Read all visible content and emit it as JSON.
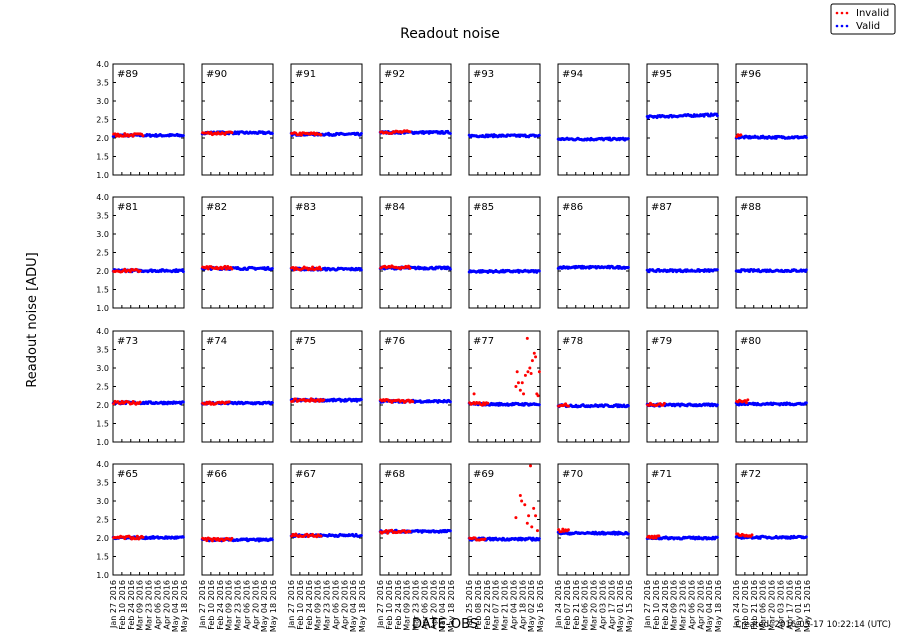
{
  "chart_data": {
    "type": "scatter",
    "title": "Readout noise",
    "xlabel": "DATE-OBS",
    "ylabel": "Readout noise [ADU]",
    "footer": "Created: 2016-05-17 10:22:14 (UTC)",
    "ylim": [
      1.0,
      4.0
    ],
    "yticks": [
      "1.0",
      "1.5",
      "2.0",
      "2.5",
      "3.0",
      "3.5",
      "4.0"
    ],
    "grid": false,
    "legend": {
      "position": "top-right",
      "entries": [
        {
          "name": "Invalid",
          "color": "#ff0000"
        },
        {
          "name": "Valid",
          "color": "#0000ff"
        }
      ]
    },
    "column_xticks": [
      [
        "2016-01-27",
        "2016-02-10",
        "2016-02-24",
        "2016-03-09",
        "2016-03-23",
        "2016-04-06",
        "2016-04-20",
        "2016-05-04",
        "2016-05-18"
      ],
      [
        "2016-01-27",
        "2016-02-10",
        "2016-02-24",
        "2016-03-09",
        "2016-03-23",
        "2016-04-06",
        "2016-04-20",
        "2016-05-04",
        "2016-05-18"
      ],
      [
        "2016-01-27",
        "2016-02-10",
        "2016-02-24",
        "2016-03-09",
        "2016-03-23",
        "2016-04-06",
        "2016-04-20",
        "2016-05-04",
        "2016-05-18"
      ],
      [
        "2016-01-27",
        "2016-02-10",
        "2016-02-24",
        "2016-03-09",
        "2016-03-23",
        "2016-04-06",
        "2016-04-20",
        "2016-05-04",
        "2016-05-18"
      ],
      [
        "2016-01-25",
        "2016-02-08",
        "2016-02-22",
        "2016-03-07",
        "2016-03-21",
        "2016-04-04",
        "2016-04-18",
        "2016-05-02",
        "2016-05-16"
      ],
      [
        "2016-01-24",
        "2016-02-07",
        "2016-02-21",
        "2016-03-06",
        "2016-03-20",
        "2016-04-03",
        "2016-04-17",
        "2016-05-01",
        "2016-05-15"
      ],
      [
        "2016-01-27",
        "2016-02-10",
        "2016-02-24",
        "2016-03-09",
        "2016-03-23",
        "2016-04-06",
        "2016-04-20",
        "2016-05-04",
        "2016-05-18"
      ],
      [
        "2016-01-24",
        "2016-02-07",
        "2016-02-21",
        "2016-03-06",
        "2016-03-20",
        "2016-04-03",
        "2016-04-17",
        "2016-05-01",
        "2016-05-15"
      ]
    ],
    "panels": [
      {
        "label": "#89",
        "valid": 2.07,
        "invalid": 2.08,
        "invalid_to": "2016-03-15"
      },
      {
        "label": "#90",
        "valid": 2.14,
        "invalid": 2.13,
        "invalid_to": "2016-03-15"
      },
      {
        "label": "#91",
        "valid": 2.1,
        "invalid": 2.11,
        "invalid_to": "2016-03-15"
      },
      {
        "label": "#92",
        "valid": 2.15,
        "invalid": 2.16,
        "invalid_to": "2016-03-15"
      },
      {
        "label": "#93",
        "valid": 2.06
      },
      {
        "label": "#94",
        "valid": 1.97
      },
      {
        "label": "#95",
        "valid": 2.57,
        "valid_end": 2.63
      },
      {
        "label": "#96",
        "valid": 2.02,
        "invalid": 2.05,
        "invalid_to": "2016-02-01"
      },
      {
        "label": "#81",
        "valid": 2.01,
        "invalid": 2.01,
        "invalid_to": "2016-03-10"
      },
      {
        "label": "#82",
        "valid": 2.07,
        "invalid": 2.09,
        "invalid_to": "2016-03-15"
      },
      {
        "label": "#83",
        "valid": 2.05,
        "invalid": 2.07,
        "invalid_to": "2016-03-15"
      },
      {
        "label": "#84",
        "valid": 2.08,
        "invalid": 2.1,
        "invalid_to": "2016-03-15"
      },
      {
        "label": "#85",
        "valid": 1.99
      },
      {
        "label": "#86",
        "valid": 2.1
      },
      {
        "label": "#87",
        "valid": 2.01
      },
      {
        "label": "#88",
        "valid": 2.01
      },
      {
        "label": "#73",
        "valid": 2.06,
        "invalid": 2.06,
        "invalid_to": "2016-03-10"
      },
      {
        "label": "#74",
        "valid": 2.05,
        "invalid": 2.05,
        "invalid_to": "2016-03-10"
      },
      {
        "label": "#75",
        "valid": 2.13,
        "invalid": 2.13,
        "invalid_to": "2016-03-20"
      },
      {
        "label": "#76",
        "valid": 2.1,
        "invalid": 2.11,
        "invalid_to": "2016-03-20"
      },
      {
        "label": "#77",
        "valid": 2.02,
        "invalid": 2.03,
        "invalid_to": "2016-02-25",
        "outliers": [
          [
            "2016-02-02",
            2.3
          ],
          [
            "2016-04-08",
            2.5
          ],
          [
            "2016-04-10",
            2.9
          ],
          [
            "2016-04-12",
            2.6
          ],
          [
            "2016-04-15",
            2.4
          ],
          [
            "2016-04-18",
            2.6
          ],
          [
            "2016-04-20",
            2.3
          ],
          [
            "2016-04-23",
            2.8
          ],
          [
            "2016-04-26",
            3.8
          ],
          [
            "2016-04-27",
            2.9
          ],
          [
            "2016-04-30",
            3.0
          ],
          [
            "2016-05-02",
            2.85
          ],
          [
            "2016-05-04",
            3.2
          ],
          [
            "2016-05-07",
            3.4
          ],
          [
            "2016-05-09",
            3.3
          ],
          [
            "2016-05-11",
            2.3
          ],
          [
            "2016-05-13",
            2.25
          ],
          [
            "2016-05-15",
            2.9
          ]
        ]
      },
      {
        "label": "#78",
        "valid": 1.98,
        "invalid": 2.0,
        "invalid_to": "2016-02-10"
      },
      {
        "label": "#79",
        "valid": 2.0,
        "invalid": 2.02,
        "invalid_to": "2016-02-25"
      },
      {
        "label": "#80",
        "valid": 2.03,
        "invalid": 2.1,
        "invalid_to": "2016-02-12"
      },
      {
        "label": "#65",
        "valid": 2.01,
        "invalid": 2.01,
        "invalid_to": "2016-03-15"
      },
      {
        "label": "#66",
        "valid": 1.95,
        "invalid": 1.96,
        "invalid_to": "2016-03-15"
      },
      {
        "label": "#67",
        "valid": 2.07,
        "invalid": 2.07,
        "invalid_to": "2016-03-15"
      },
      {
        "label": "#68",
        "valid": 2.18,
        "invalid": 2.17,
        "invalid_to": "2016-03-15"
      },
      {
        "label": "#69",
        "valid": 1.97,
        "invalid": 1.98,
        "invalid_to": "2016-02-20",
        "outliers": [
          [
            "2016-04-08",
            2.55
          ],
          [
            "2016-04-15",
            3.15
          ],
          [
            "2016-04-17",
            3.0
          ],
          [
            "2016-04-22",
            2.9
          ],
          [
            "2016-04-26",
            2.4
          ],
          [
            "2016-04-28",
            2.6
          ],
          [
            "2016-05-01",
            3.95
          ],
          [
            "2016-05-03",
            2.3
          ],
          [
            "2016-05-06",
            2.8
          ],
          [
            "2016-05-09",
            2.6
          ],
          [
            "2016-05-12",
            2.2
          ]
        ]
      },
      {
        "label": "#70",
        "valid": 2.13,
        "invalid": 2.2,
        "invalid_to": "2016-02-10"
      },
      {
        "label": "#71",
        "valid": 2.0,
        "invalid": 2.02,
        "invalid_to": "2016-02-15"
      },
      {
        "label": "#72",
        "valid": 2.02,
        "invalid": 2.08,
        "invalid_to": "2016-02-20"
      }
    ]
  }
}
